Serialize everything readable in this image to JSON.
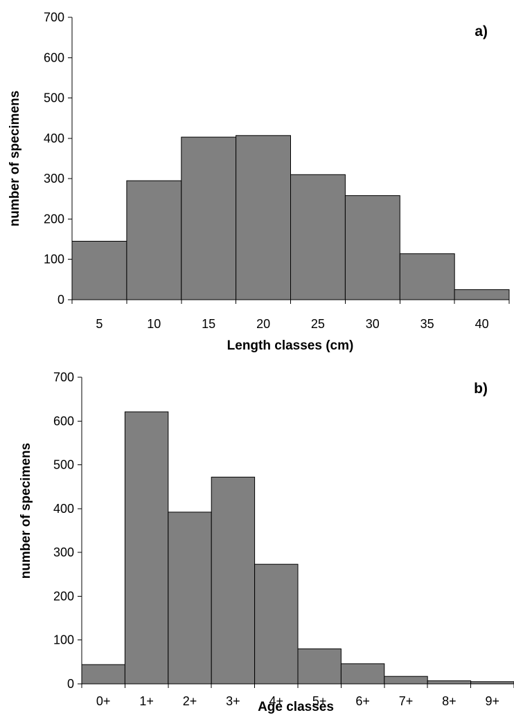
{
  "colors": {
    "bar_fill": "#808080",
    "bar_stroke": "#000000",
    "axis": "#000000",
    "background": "#ffffff"
  },
  "chart_data": [
    {
      "type": "bar",
      "panel_label": "a)",
      "xlabel": "Length classes (cm)",
      "ylabel": "number of specimens",
      "categories": [
        "5",
        "10",
        "15",
        "20",
        "25",
        "30",
        "35",
        "40"
      ],
      "values": [
        145,
        295,
        403,
        407,
        310,
        258,
        114,
        25
      ],
      "ylim": [
        0,
        700
      ],
      "yticks": [
        "0",
        "100",
        "200",
        "300",
        "400",
        "500",
        "600",
        "700"
      ],
      "grid": false
    },
    {
      "type": "bar",
      "panel_label": "b)",
      "xlabel": "Age classes",
      "ylabel": "number of specimens",
      "categories": [
        "0+",
        "1+",
        "2+",
        "3+",
        "4+",
        "5+",
        "6+",
        "7+",
        "8+",
        "9+"
      ],
      "values": [
        44,
        621,
        392,
        472,
        273,
        80,
        46,
        17,
        7,
        5
      ],
      "ylim": [
        0,
        700
      ],
      "yticks": [
        "0",
        "100",
        "200",
        "300",
        "400",
        "500",
        "600",
        "700"
      ],
      "grid": false
    }
  ]
}
